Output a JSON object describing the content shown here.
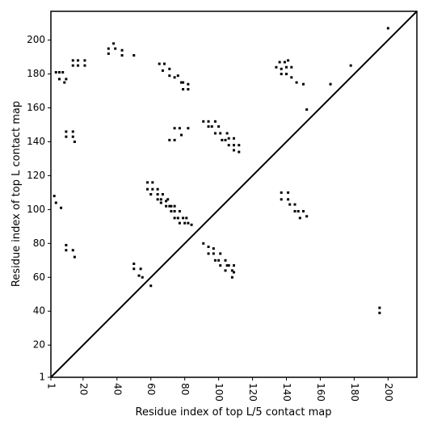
{
  "chart_data": {
    "type": "scatter",
    "xlabel": "Residue index of top L/5 contact map",
    "ylabel": "Residue index of top L contact map",
    "x": [
      4,
      6,
      8,
      6,
      10,
      9,
      14,
      14,
      17,
      17,
      21,
      21,
      35,
      35,
      38,
      39,
      43,
      43,
      50,
      65,
      68,
      67,
      71,
      71,
      74,
      76,
      78,
      79,
      79,
      82,
      82,
      10,
      10,
      14,
      14,
      15,
      71,
      74,
      74,
      77,
      78,
      82,
      3,
      4,
      7,
      10,
      10,
      14,
      15,
      50,
      50,
      54,
      53,
      55,
      60,
      58,
      61,
      58,
      61,
      60,
      64,
      64,
      64,
      66,
      67,
      66,
      69,
      69,
      70,
      71,
      72,
      72,
      74,
      74,
      74,
      76,
      77,
      77,
      79,
      81,
      80,
      82,
      84,
      91,
      94,
      94,
      97,
      97,
      98,
      100,
      101,
      101,
      104,
      105,
      106,
      108,
      108,
      109,
      109,
      104,
      91,
      94,
      94,
      96,
      98,
      98,
      100,
      101,
      102,
      104,
      105,
      106,
      106,
      109,
      109,
      109,
      112,
      112,
      136,
      139,
      141,
      140,
      137,
      137,
      140,
      143,
      143,
      146,
      150,
      134,
      166,
      178,
      152,
      137,
      137,
      141,
      141,
      142,
      145,
      145,
      147,
      148,
      150,
      152,
      195,
      195,
      200
    ],
    "values": [
      181,
      181,
      181,
      177,
      177,
      175,
      188,
      185,
      188,
      185,
      188,
      185,
      195,
      192,
      198,
      195,
      194,
      191,
      191,
      186,
      186,
      182,
      183,
      179,
      178,
      179,
      175,
      175,
      171,
      171,
      174,
      146,
      143,
      146,
      143,
      140,
      141,
      141,
      148,
      148,
      144,
      148,
      108,
      104,
      101,
      79,
      76,
      76,
      72,
      68,
      65,
      65,
      61,
      60,
      55,
      116,
      116,
      112,
      112,
      109,
      112,
      109,
      106,
      106,
      109,
      104,
      105,
      102,
      106,
      102,
      99,
      102,
      102,
      99,
      95,
      95,
      99,
      92,
      95,
      95,
      92,
      92,
      91,
      80,
      78,
      74,
      77,
      74,
      70,
      70,
      67,
      74,
      70,
      67,
      67,
      64,
      60,
      63,
      67,
      64,
      152,
      152,
      149,
      149,
      152,
      145,
      149,
      145,
      141,
      141,
      145,
      142,
      138,
      142,
      138,
      135,
      138,
      134,
      187,
      187,
      188,
      184,
      183,
      180,
      180,
      184,
      178,
      175,
      174,
      184,
      174,
      185,
      159,
      110,
      106,
      110,
      106,
      103,
      103,
      99,
      99,
      95,
      99,
      96,
      42,
      39,
      207
    ],
    "color": "#000000",
    "diagonal": true,
    "xlim": [
      1,
      217
    ],
    "ylim": [
      1,
      217
    ],
    "xticks": [
      1,
      20,
      40,
      60,
      80,
      100,
      120,
      140,
      160,
      180,
      200
    ],
    "yticks": [
      1,
      20,
      40,
      60,
      80,
      100,
      120,
      140,
      160,
      180,
      200
    ]
  }
}
